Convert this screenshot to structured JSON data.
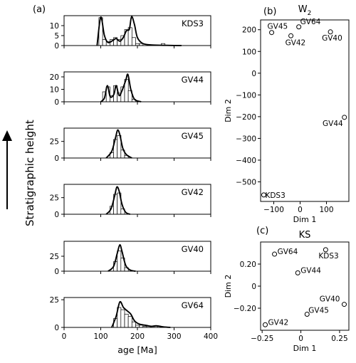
{
  "panel_labels": {
    "a": "(a)",
    "b": "(b)",
    "c": "(c)"
  },
  "stratigraphic_label": "Stratigraphic height",
  "chart_data": [
    {
      "type": "histogram",
      "panel": "(a)",
      "xlabel": "age [Ma]",
      "xlim": [
        0,
        400
      ],
      "xticks": [
        0,
        100,
        200,
        300,
        400
      ],
      "grid": false,
      "samples": [
        {
          "name": "KDS3",
          "ylim": [
            0,
            15
          ],
          "yticks": [
            0,
            5,
            10
          ],
          "kde_peaks": [
            [
              90,
              0
            ],
            [
              100,
              14.2
            ],
            [
              110,
              5
            ],
            [
              120,
              1.5
            ],
            [
              135,
              2.8
            ],
            [
              142,
              3.5
            ],
            [
              152,
              2.2
            ],
            [
              162,
              4.2
            ],
            [
              170,
              7.5
            ],
            [
              178,
              8.2
            ],
            [
              184,
              14.5
            ],
            [
              192,
              10.5
            ],
            [
              200,
              4
            ],
            [
              215,
              1
            ],
            [
              240,
              0.3
            ],
            [
              280,
              0.1
            ],
            [
              320,
              0
            ]
          ],
          "bins": [
            [
              100,
              14
            ],
            [
              110,
              3
            ],
            [
              120,
              2
            ],
            [
              130,
              3
            ],
            [
              140,
              4
            ],
            [
              150,
              3
            ],
            [
              160,
              5
            ],
            [
              170,
              8
            ],
            [
              180,
              9
            ],
            [
              190,
              4
            ],
            [
              200,
              1
            ],
            [
              210,
              1
            ],
            [
              270,
              1
            ]
          ]
        },
        {
          "name": "GV44",
          "ylim": [
            0,
            24
          ],
          "yticks": [
            0,
            10,
            20
          ],
          "kde_peaks": [
            [
              100,
              0
            ],
            [
              110,
              3
            ],
            [
              118,
              13
            ],
            [
              126,
              4
            ],
            [
              136,
              6
            ],
            [
              142,
              13
            ],
            [
              150,
              5
            ],
            [
              158,
              9
            ],
            [
              168,
              17
            ],
            [
              174,
              22
            ],
            [
              182,
              10
            ],
            [
              192,
              2
            ],
            [
              210,
              0
            ]
          ],
          "bins": [
            [
              110,
              8
            ],
            [
              120,
              12
            ],
            [
              130,
              5
            ],
            [
              140,
              13
            ],
            [
              150,
              7
            ],
            [
              160,
              12
            ],
            [
              170,
              18
            ],
            [
              180,
              9
            ],
            [
              190,
              2
            ]
          ]
        },
        {
          "name": "GV45",
          "ylim": [
            0,
            45
          ],
          "yticks": [
            0,
            25
          ],
          "kde_peaks": [
            [
              115,
              0
            ],
            [
              130,
              10
            ],
            [
              140,
              30
            ],
            [
              146,
              42
            ],
            [
              152,
              35
            ],
            [
              160,
              15
            ],
            [
              170,
              5
            ],
            [
              185,
              0
            ]
          ],
          "bins": [
            [
              130,
              8
            ],
            [
              140,
              28
            ],
            [
              150,
              34
            ],
            [
              160,
              12
            ],
            [
              170,
              4
            ]
          ]
        },
        {
          "name": "GV42",
          "ylim": [
            0,
            45
          ],
          "yticks": [
            0,
            25
          ],
          "kde_peaks": [
            [
              115,
              0
            ],
            [
              128,
              8
            ],
            [
              138,
              28
            ],
            [
              144,
              41
            ],
            [
              150,
              35
            ],
            [
              158,
              15
            ],
            [
              168,
              3
            ],
            [
              180,
              0
            ]
          ],
          "bins": [
            [
              130,
              12
            ],
            [
              140,
              30
            ],
            [
              150,
              32
            ],
            [
              160,
              8
            ]
          ]
        },
        {
          "name": "GV40",
          "ylim": [
            0,
            50
          ],
          "yticks": [
            0,
            25
          ],
          "kde_peaks": [
            [
              120,
              0
            ],
            [
              135,
              8
            ],
            [
              145,
              30
            ],
            [
              152,
              44
            ],
            [
              158,
              33
            ],
            [
              168,
              10
            ],
            [
              180,
              2
            ],
            [
              195,
              0
            ]
          ],
          "bins": [
            [
              140,
              16
            ],
            [
              150,
              34
            ],
            [
              160,
              22
            ],
            [
              170,
              6
            ]
          ]
        },
        {
          "name": "GV64",
          "ylim": [
            0,
            27
          ],
          "yticks": [
            0,
            25
          ],
          "kde_peaks": [
            [
              130,
              0
            ],
            [
              142,
              10
            ],
            [
              152,
              23
            ],
            [
              162,
              18
            ],
            [
              172,
              15
            ],
            [
              182,
              12
            ],
            [
              192,
              6
            ],
            [
              205,
              3
            ],
            [
              222,
              2
            ],
            [
              238,
              1
            ],
            [
              252,
              1.5
            ],
            [
              270,
              0.5
            ],
            [
              290,
              0
            ]
          ],
          "bins": [
            [
              140,
              8
            ],
            [
              150,
              18
            ],
            [
              160,
              16
            ],
            [
              170,
              12
            ],
            [
              180,
              10
            ],
            [
              190,
              5
            ],
            [
              200,
              2
            ],
            [
              210,
              2
            ],
            [
              220,
              1
            ],
            [
              230,
              1
            ],
            [
              250,
              1
            ]
          ]
        }
      ]
    },
    {
      "type": "scatter",
      "panel": "(b)",
      "title": "W",
      "title_sub": "2",
      "xlabel": "Dim 1",
      "ylabel": "Dim 2",
      "xlim": [
        -150,
        185
      ],
      "ylim": [
        -590,
        245
      ],
      "xticks": [
        -100,
        0,
        100
      ],
      "yticks": [
        200,
        100,
        0,
        -100,
        -200,
        -300,
        -400,
        -500
      ],
      "points": [
        {
          "label": "GV45",
          "x": -108,
          "y": 187
        },
        {
          "label": "GV64",
          "x": -5,
          "y": 213
        },
        {
          "label": "GV42",
          "x": -35,
          "y": 172
        },
        {
          "label": "GV40",
          "x": 115,
          "y": 190
        },
        {
          "label": "GV44",
          "x": 168,
          "y": -203
        },
        {
          "label": "KDS3",
          "x": -138,
          "y": -560
        }
      ]
    },
    {
      "type": "scatter",
      "panel": "(c)",
      "title": "KS",
      "xlabel": "Dim 1",
      "ylabel": "Dim 2",
      "xlim": [
        -0.26,
        0.31
      ],
      "ylim": [
        -0.4,
        0.4
      ],
      "xticks": [
        -0.25,
        0.0,
        0.25
      ],
      "yticks": [
        0.2,
        0.0,
        -0.2
      ],
      "points": [
        {
          "label": "GV64",
          "x": -0.17,
          "y": 0.29
        },
        {
          "label": "KDS3",
          "x": 0.16,
          "y": 0.33
        },
        {
          "label": "GV44",
          "x": -0.02,
          "y": 0.12
        },
        {
          "label": "GV40",
          "x": 0.28,
          "y": -0.165
        },
        {
          "label": "GV45",
          "x": 0.04,
          "y": -0.255
        },
        {
          "label": "GV42",
          "x": -0.23,
          "y": -0.35
        }
      ]
    }
  ]
}
